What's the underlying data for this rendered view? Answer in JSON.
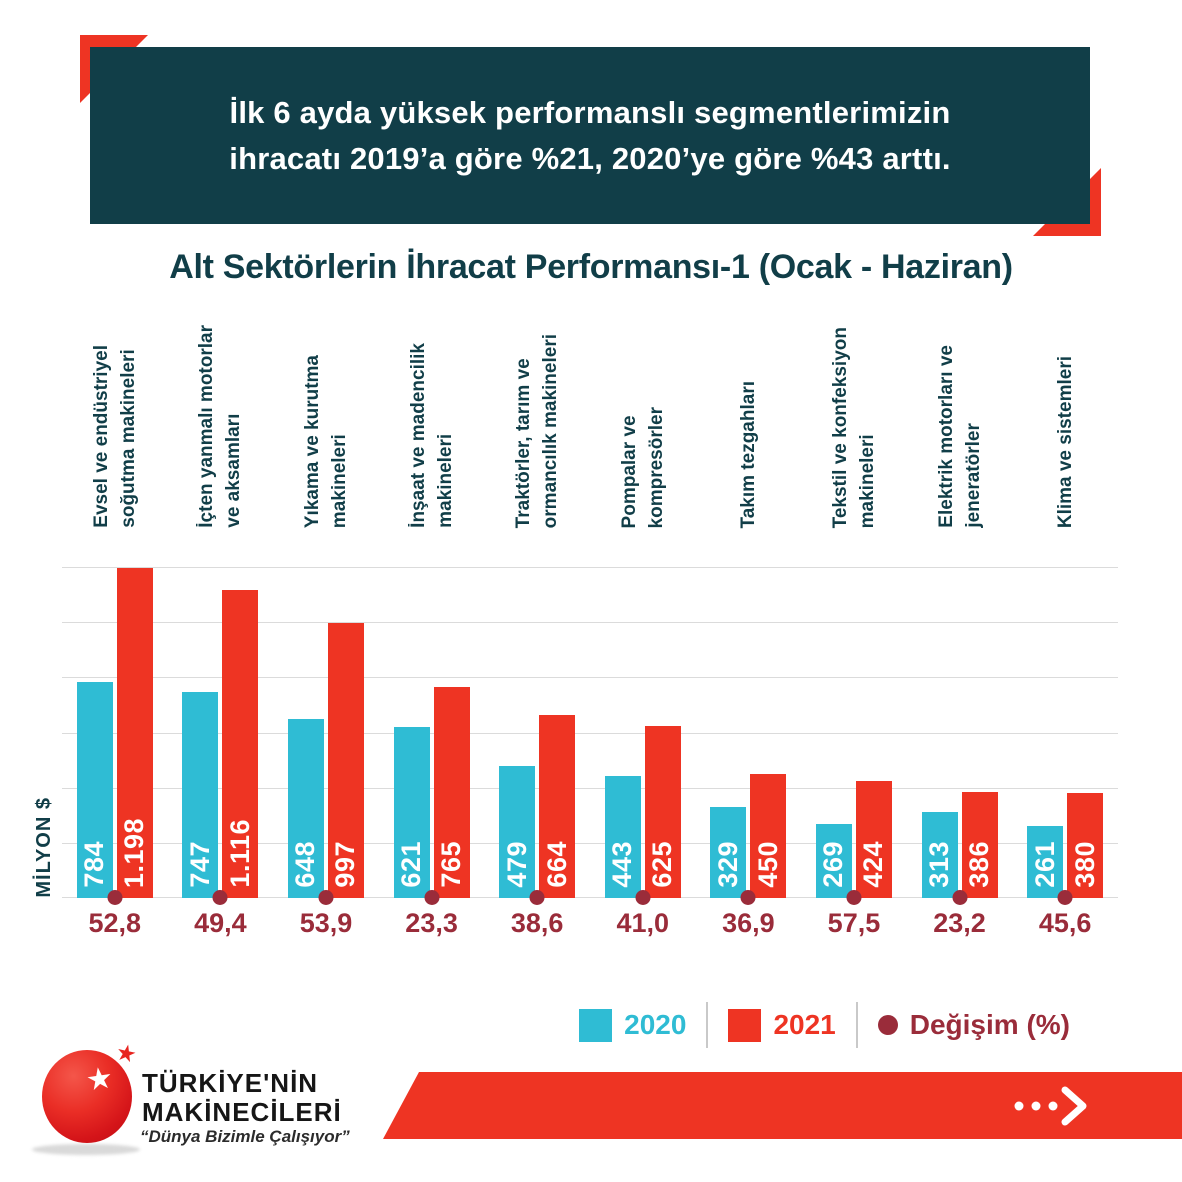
{
  "header": {
    "text": "İlk 6 ayda yüksek performanslı segmentlerimizin\nihracatı 2019’a göre %21, 2020’ye göre %43 arttı."
  },
  "chart_data": {
    "type": "bar",
    "title": "Alt Sektörlerin İhracat Performansı-1 (Ocak - Haziran)",
    "ylabel": "MİLYON $",
    "xlabel": "",
    "ylim": [
      0,
      1200
    ],
    "ytick_step": 200,
    "grid": true,
    "legend_position": "bottom-right",
    "categories": [
      "Evsel ve endüstriyel\nsoğutma makineleri",
      "İçten yanmalı motorlar\nve aksamları",
      "Yıkama ve kurutma\nmakineleri",
      "İnşaat ve madencilik\nmakineleri",
      "Traktörler, tarım ve\normancılık makineleri",
      "Pompalar ve\nkompresörler",
      "Takım tezgahları",
      "Tekstil ve konfeksiyon\nmakineleri",
      "Elektrik motorları ve\njeneratörler",
      "Klima ve sistemleri"
    ],
    "series": [
      {
        "name": "2020",
        "color": "#2FBCD4",
        "values": [
          784,
          747,
          648,
          621,
          479,
          443,
          329,
          269,
          313,
          261
        ],
        "labels": [
          "784",
          "747",
          "648",
          "621",
          "479",
          "443",
          "329",
          "269",
          "313",
          "261"
        ]
      },
      {
        "name": "2021",
        "color": "#EE3423",
        "values": [
          1198,
          1116,
          997,
          765,
          664,
          625,
          450,
          424,
          386,
          380
        ],
        "labels": [
          "1.198",
          "1.116",
          "997",
          "765",
          "664",
          "625",
          "450",
          "424",
          "386",
          "380"
        ]
      }
    ],
    "change_series": {
      "name": "Değişim (%)",
      "color": "#9A2C3A",
      "values": [
        52.8,
        49.4,
        53.9,
        23.3,
        38.6,
        41.0,
        36.9,
        57.5,
        23.2,
        45.6
      ],
      "labels": [
        "52,8",
        "49,4",
        "53,9",
        "23,3",
        "38,6",
        "41,0",
        "36,9",
        "57,5",
        "23,2",
        "45,6"
      ]
    }
  },
  "legend": {
    "items": [
      {
        "label": "2020",
        "marker": "square",
        "color": "#2FBCD4"
      },
      {
        "label": "2021",
        "marker": "square",
        "color": "#EE3423"
      },
      {
        "label": "Değişim (%)",
        "marker": "circle",
        "color": "#9A2C3A"
      }
    ]
  },
  "footer": {
    "brand_top": "TÜRKİYE'NİN",
    "brand_bottom": "MAKİNECİLERİ",
    "slogan": "“Dünya Bizimle Çalışıyor”",
    "star_icon": "★"
  },
  "colors": {
    "teal_dark": "#113E48",
    "cyan_2020": "#2FBCD4",
    "red_2021": "#EE3423",
    "maroon_change": "#9A2C3A",
    "gridline": "#DBDBDB",
    "banner_red": "#EE3423"
  }
}
